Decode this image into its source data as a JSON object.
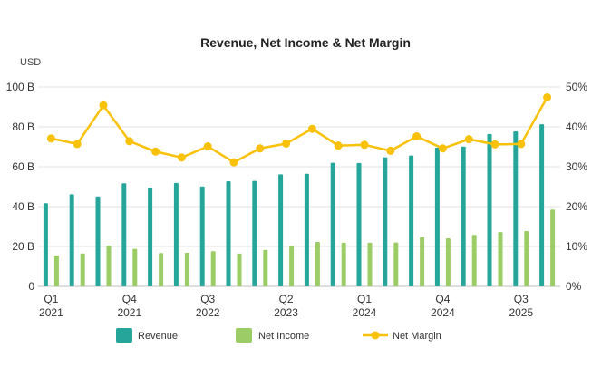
{
  "chart_data": {
    "type": "bar",
    "title": "Revenue, Net Income & Net Margin",
    "y_left_unit": "USD",
    "y_left_ticks": [
      "0",
      "20 B",
      "40 B",
      "60 B",
      "80 B",
      "100 B"
    ],
    "y_left_lim": [
      0,
      100
    ],
    "y_right_ticks": [
      "0%",
      "10%",
      "20%",
      "30%",
      "40%",
      "50%"
    ],
    "y_right_lim": [
      0,
      50
    ],
    "x_tick_labels": [
      {
        "quarter": "Q1",
        "year": "2021",
        "index": 0
      },
      {
        "quarter": "Q4",
        "year": "2021",
        "index": 3
      },
      {
        "quarter": "Q3",
        "year": "2022",
        "index": 6
      },
      {
        "quarter": "Q2",
        "year": "2023",
        "index": 9
      },
      {
        "quarter": "Q1",
        "year": "2024",
        "index": 12
      },
      {
        "quarter": "Q4",
        "year": "2024",
        "index": 15
      },
      {
        "quarter": "Q3",
        "year": "2025",
        "index": 18
      }
    ],
    "categories": [
      "Q1 2021",
      "Q2 2021",
      "Q3 2021",
      "Q4 2021",
      "Q1 2022",
      "Q2 2022",
      "Q3 2022",
      "Q4 2022",
      "Q1 2023",
      "Q2 2023",
      "Q3 2023",
      "Q4 2023",
      "Q1 2024",
      "Q2 2024",
      "Q3 2024",
      "Q4 2024",
      "Q1 2025",
      "Q2 2025",
      "Q3 2025",
      "Q4 2025"
    ],
    "series": [
      {
        "name": "Revenue",
        "kind": "bar",
        "axis": "left",
        "color": "#26a69a",
        "values": [
          41.7,
          46.2,
          45.1,
          51.7,
          49.4,
          51.9,
          50.1,
          52.7,
          52.9,
          56.2,
          56.5,
          62.0,
          61.9,
          64.7,
          65.6,
          69.6,
          70.1,
          76.4,
          77.7,
          81.3
        ]
      },
      {
        "name": "Net Income",
        "kind": "bar",
        "axis": "left",
        "color": "#9ccc65",
        "values": [
          15.5,
          16.5,
          20.5,
          18.8,
          16.7,
          16.8,
          17.6,
          16.4,
          18.3,
          20.1,
          22.3,
          21.9,
          21.9,
          22.0,
          24.7,
          24.1,
          25.8,
          27.2,
          27.7,
          38.5
        ]
      },
      {
        "name": "Net Margin",
        "kind": "line",
        "axis": "right",
        "color": "#f9c10a",
        "values": [
          37.1,
          35.7,
          45.4,
          36.4,
          33.8,
          32.3,
          35.1,
          31.1,
          34.6,
          35.8,
          39.5,
          35.3,
          35.5,
          34.0,
          37.6,
          34.6,
          36.9,
          35.6,
          35.7,
          47.4
        ]
      }
    ],
    "legend": [
      "Revenue",
      "Net Income",
      "Net Margin"
    ],
    "legend_position": "bottom",
    "grid": true
  }
}
